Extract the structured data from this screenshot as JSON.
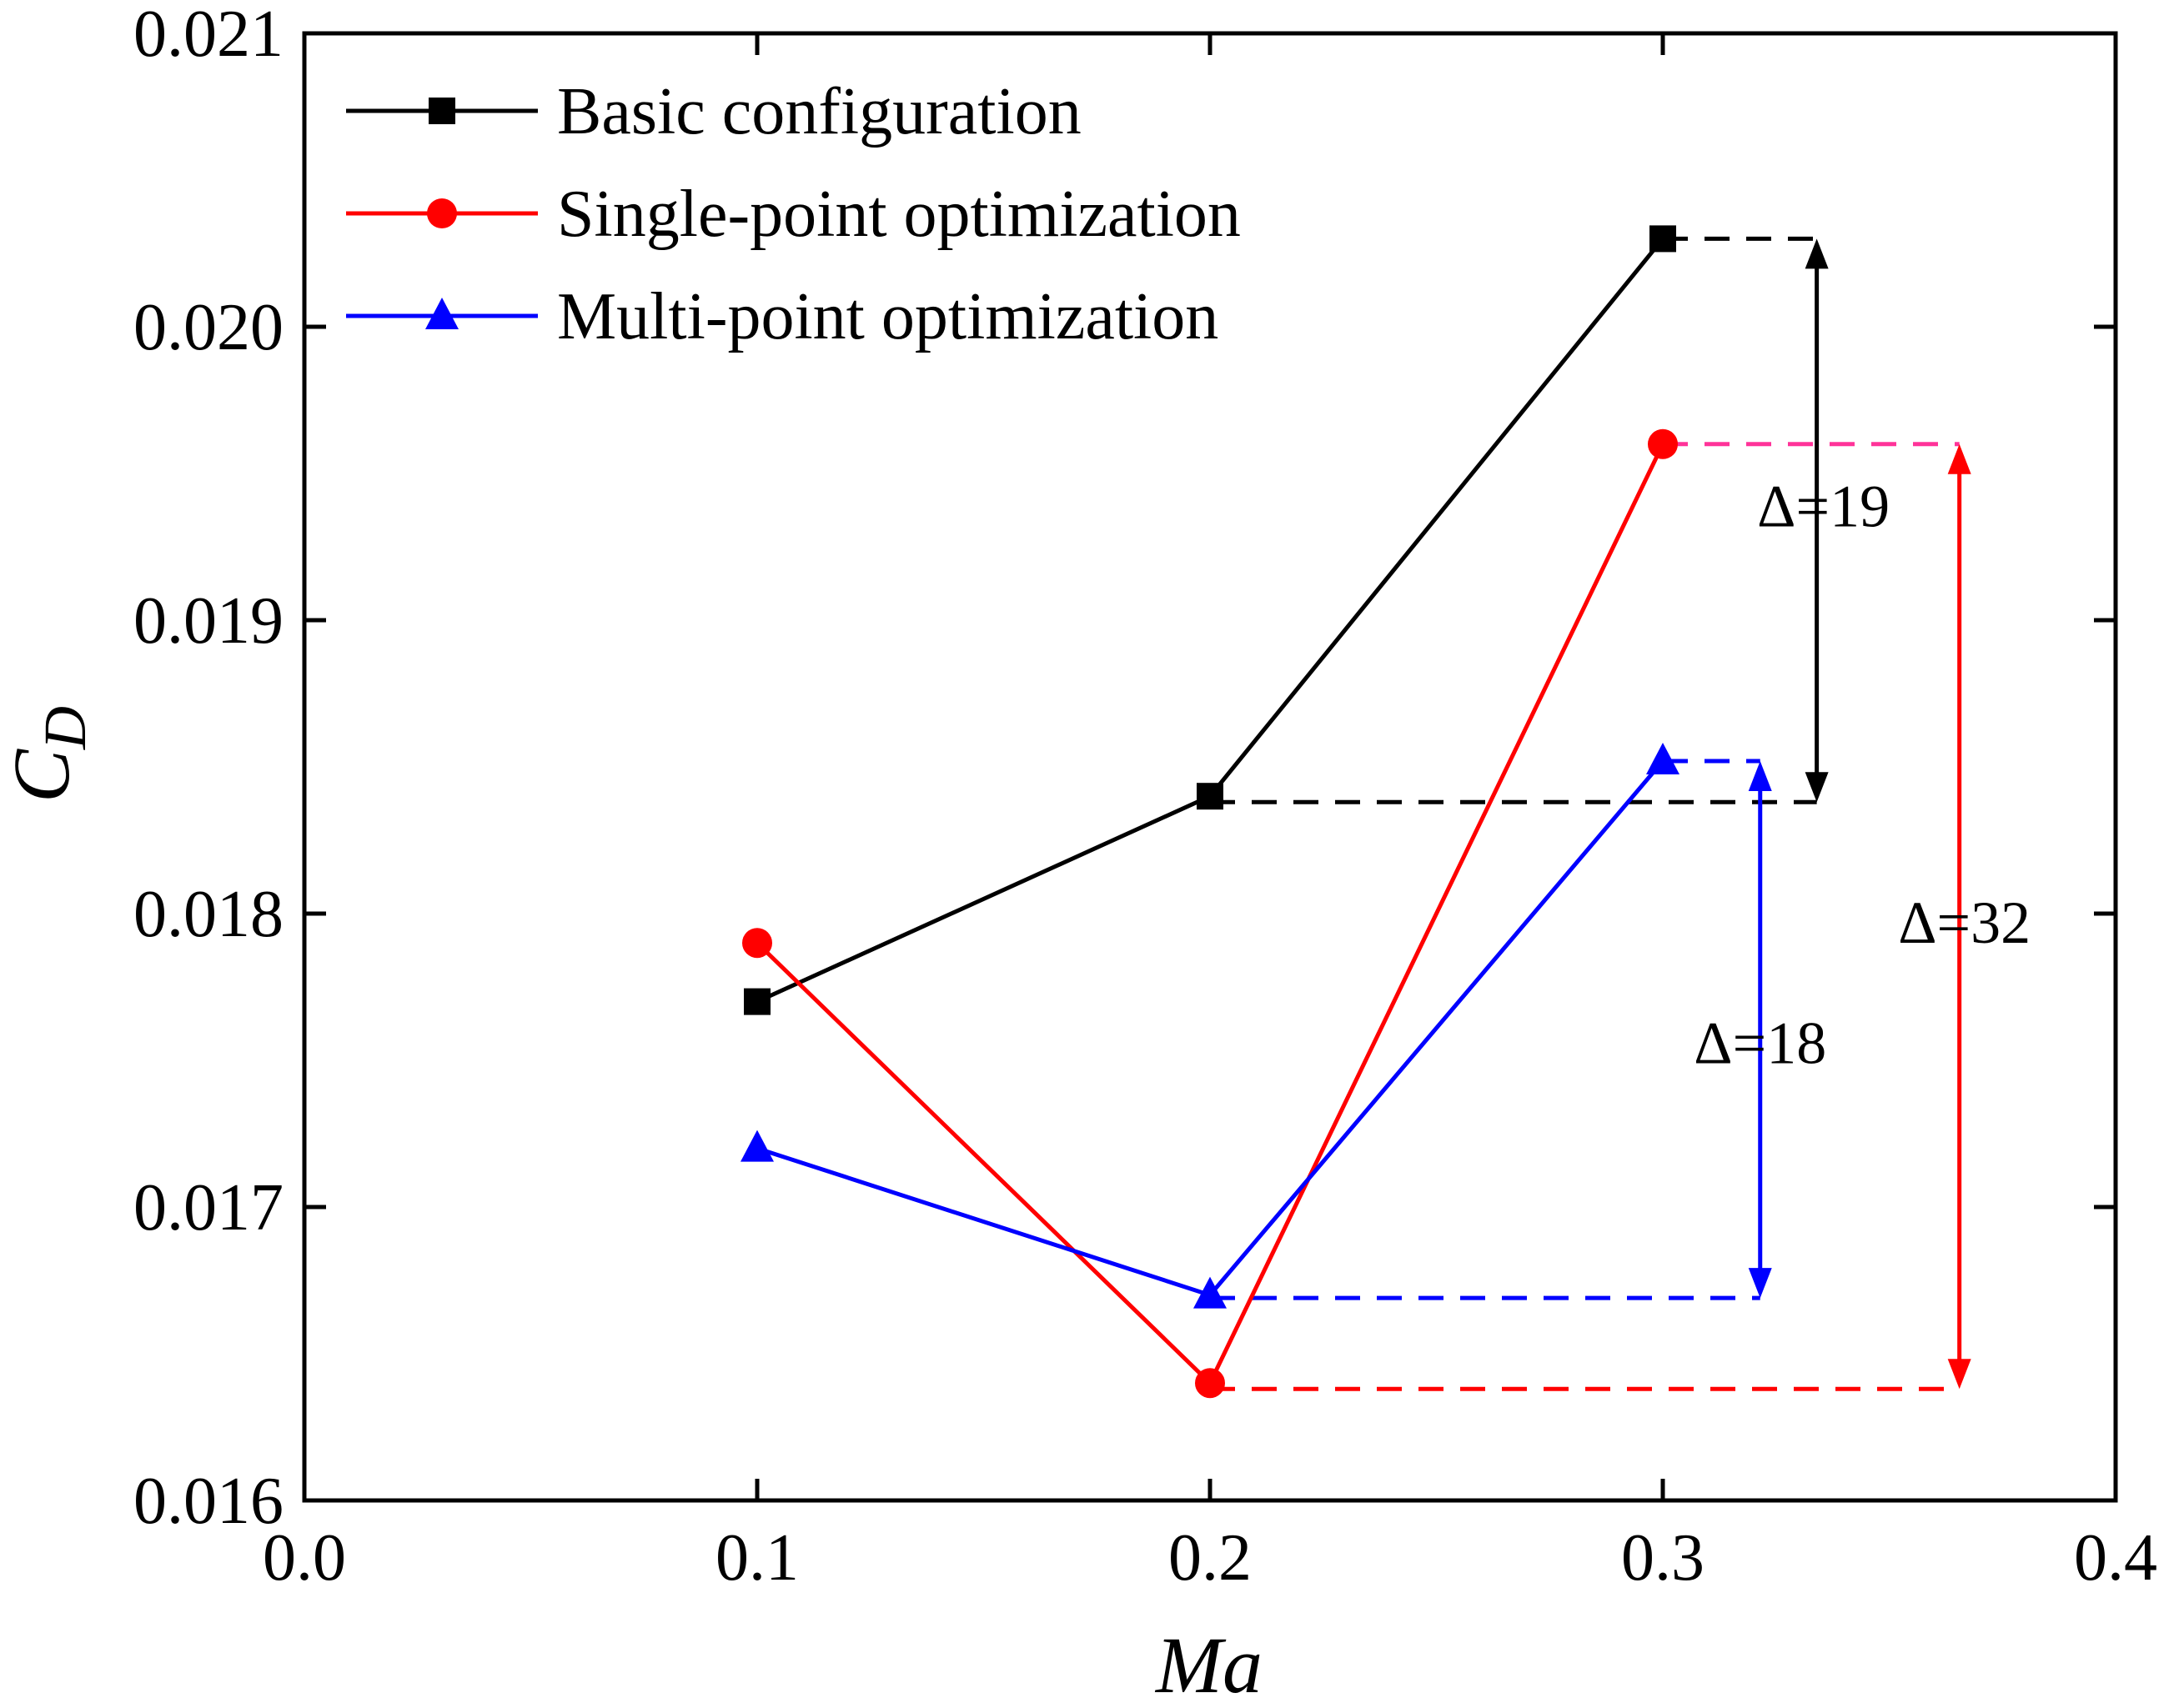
{
  "chart_data": {
    "type": "line",
    "title": "",
    "xlabel": "Ma",
    "ylabel": "C",
    "ylabel_sub": "D",
    "xlim": [
      0.0,
      0.4
    ],
    "ylim": [
      0.016,
      0.021
    ],
    "xticks": [
      0.0,
      0.1,
      0.2,
      0.3,
      0.4
    ],
    "xtick_labels": [
      "0.0",
      "0.1",
      "0.2",
      "0.3",
      "0.4"
    ],
    "yticks": [
      0.016,
      0.017,
      0.018,
      0.019,
      0.02,
      0.021
    ],
    "ytick_labels": [
      "0.016",
      "0.017",
      "0.018",
      "0.019",
      "0.020",
      "0.021"
    ],
    "grid": false,
    "legend_position": "top-left",
    "x": [
      0.1,
      0.2,
      0.3
    ],
    "series": [
      {
        "name": "Basic configuration",
        "values": [
          0.0177,
          0.0184,
          0.0203
        ],
        "color": "#000000",
        "marker": "square"
      },
      {
        "name": "Single-point optimization",
        "values": [
          0.0179,
          0.0164,
          0.0196
        ],
        "color": "#ff0000",
        "marker": "circle"
      },
      {
        "name": "Multi-point optimization",
        "values": [
          0.0172,
          0.0167,
          0.01852
        ],
        "color": "#0000ff",
        "marker": "triangle"
      }
    ],
    "annotations": [
      {
        "label": "Δ=19",
        "color": "#000000",
        "dash_color": "#000000",
        "from": [
          0.2,
          0.01838
        ],
        "to": [
          0.3,
          0.0203
        ],
        "arrow_x": 0.334,
        "line_end_x": 0.334
      },
      {
        "label": "Δ=32",
        "color": "#ff0000",
        "dash_color": "#ff0000",
        "top_dash_color": "#ff3399",
        "from": [
          0.2,
          0.01638
        ],
        "to": [
          0.3,
          0.0196
        ],
        "arrow_x": 0.3655,
        "line_end_x": 0.3655
      },
      {
        "label": "Δ=18",
        "color": "#0000ff",
        "dash_color": "#0000ff",
        "from": [
          0.2,
          0.01669
        ],
        "to": [
          0.3,
          0.01852
        ],
        "arrow_x": 0.3215,
        "line_end_x": 0.3215
      }
    ]
  }
}
